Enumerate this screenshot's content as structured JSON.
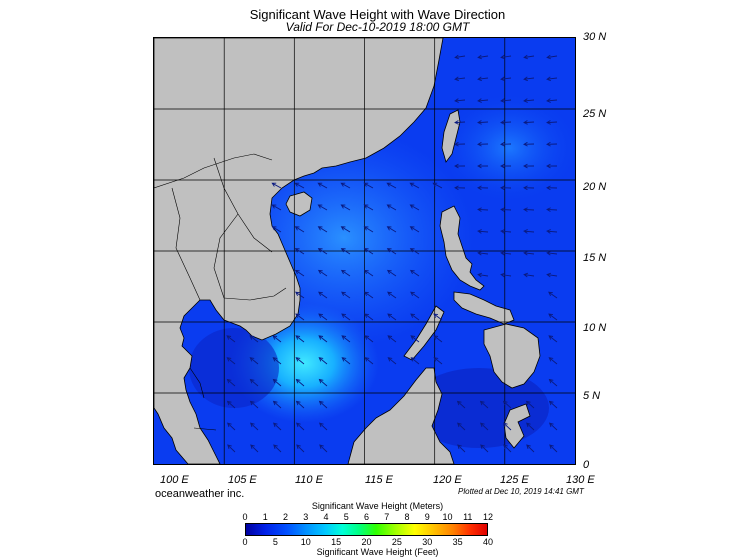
{
  "title": "Significant Wave Height with Wave Direction",
  "subtitle": "Valid For Dec-10-2019 18:00 GMT",
  "lat_labels": [
    "30 N",
    "25 N",
    "20 N",
    "15 N",
    "10 N",
    "5 N",
    "0"
  ],
  "lon_labels": [
    "100 E",
    "105 E",
    "110 E",
    "115 E",
    "120 E",
    "125 E",
    "130 E"
  ],
  "credit": "oceanweather inc.",
  "plotted": "Plotted at Dec 10, 2019 14:41 GMT",
  "colorbar": {
    "meters_title": "Significant Wave Height (Meters)",
    "feet_title": "Significant Wave Height (Feet)",
    "meter_ticks": [
      "0",
      "1",
      "2",
      "3",
      "4",
      "5",
      "6",
      "7",
      "8",
      "9",
      "10",
      "11",
      "12"
    ],
    "feet_ticks": [
      "0",
      "5",
      "10",
      "15",
      "20",
      "25",
      "30",
      "35",
      "40"
    ]
  },
  "colors": {
    "land": "#c0c0c0",
    "ocean_base": "#0a3cf0",
    "ocean_light": "#30a0ff",
    "ocean_peak": "#40e8ff",
    "ocean_dark": "#0018b0",
    "arrow": "#0a1a80"
  },
  "map_extent": {
    "lon_min": 100,
    "lon_max": 130,
    "lat_min": 0,
    "lat_max": 30
  }
}
